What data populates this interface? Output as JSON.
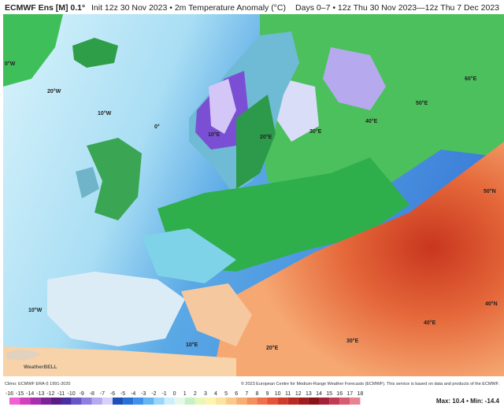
{
  "header": {
    "title": "ECMWF Ens [M] 0.1°",
    "subtitle": "Init 12z 30 Nov 2023 • 2m Temperature Anomaly (°C)",
    "period": "Days 0–7 • 12z Thu 30 Nov 2023—12z Thu 7 Dec 2023"
  },
  "grid_labels": [
    "0°W",
    "20°W",
    "10°W",
    "0°",
    "10°E",
    "20°E",
    "30°E",
    "40°E",
    "50°E",
    "60°E",
    "50°N",
    "40°N",
    "10°W",
    "10°E",
    "20°E",
    "30°E",
    "40°E"
  ],
  "logo": "WeatherBELL",
  "footer": {
    "climo": "Climo: ECMWF ERA-5 1991-2020",
    "copyright": "© 2023 European Centre for Medium-Range Weather Forecasts (ECMWF). This service is based on data and products of the ECMWF."
  },
  "colorbar": {
    "labels": [
      -16,
      -15,
      -14,
      -13,
      -12,
      -11,
      -10,
      -9,
      -8,
      -7,
      -6,
      -5,
      -4,
      -3,
      -2,
      -1,
      0,
      1,
      2,
      3,
      4,
      5,
      6,
      7,
      8,
      9,
      10,
      11,
      12,
      13,
      14,
      15,
      16,
      17,
      18
    ]
  },
  "stats": "Max: 10.4 • Min: -14.4"
}
